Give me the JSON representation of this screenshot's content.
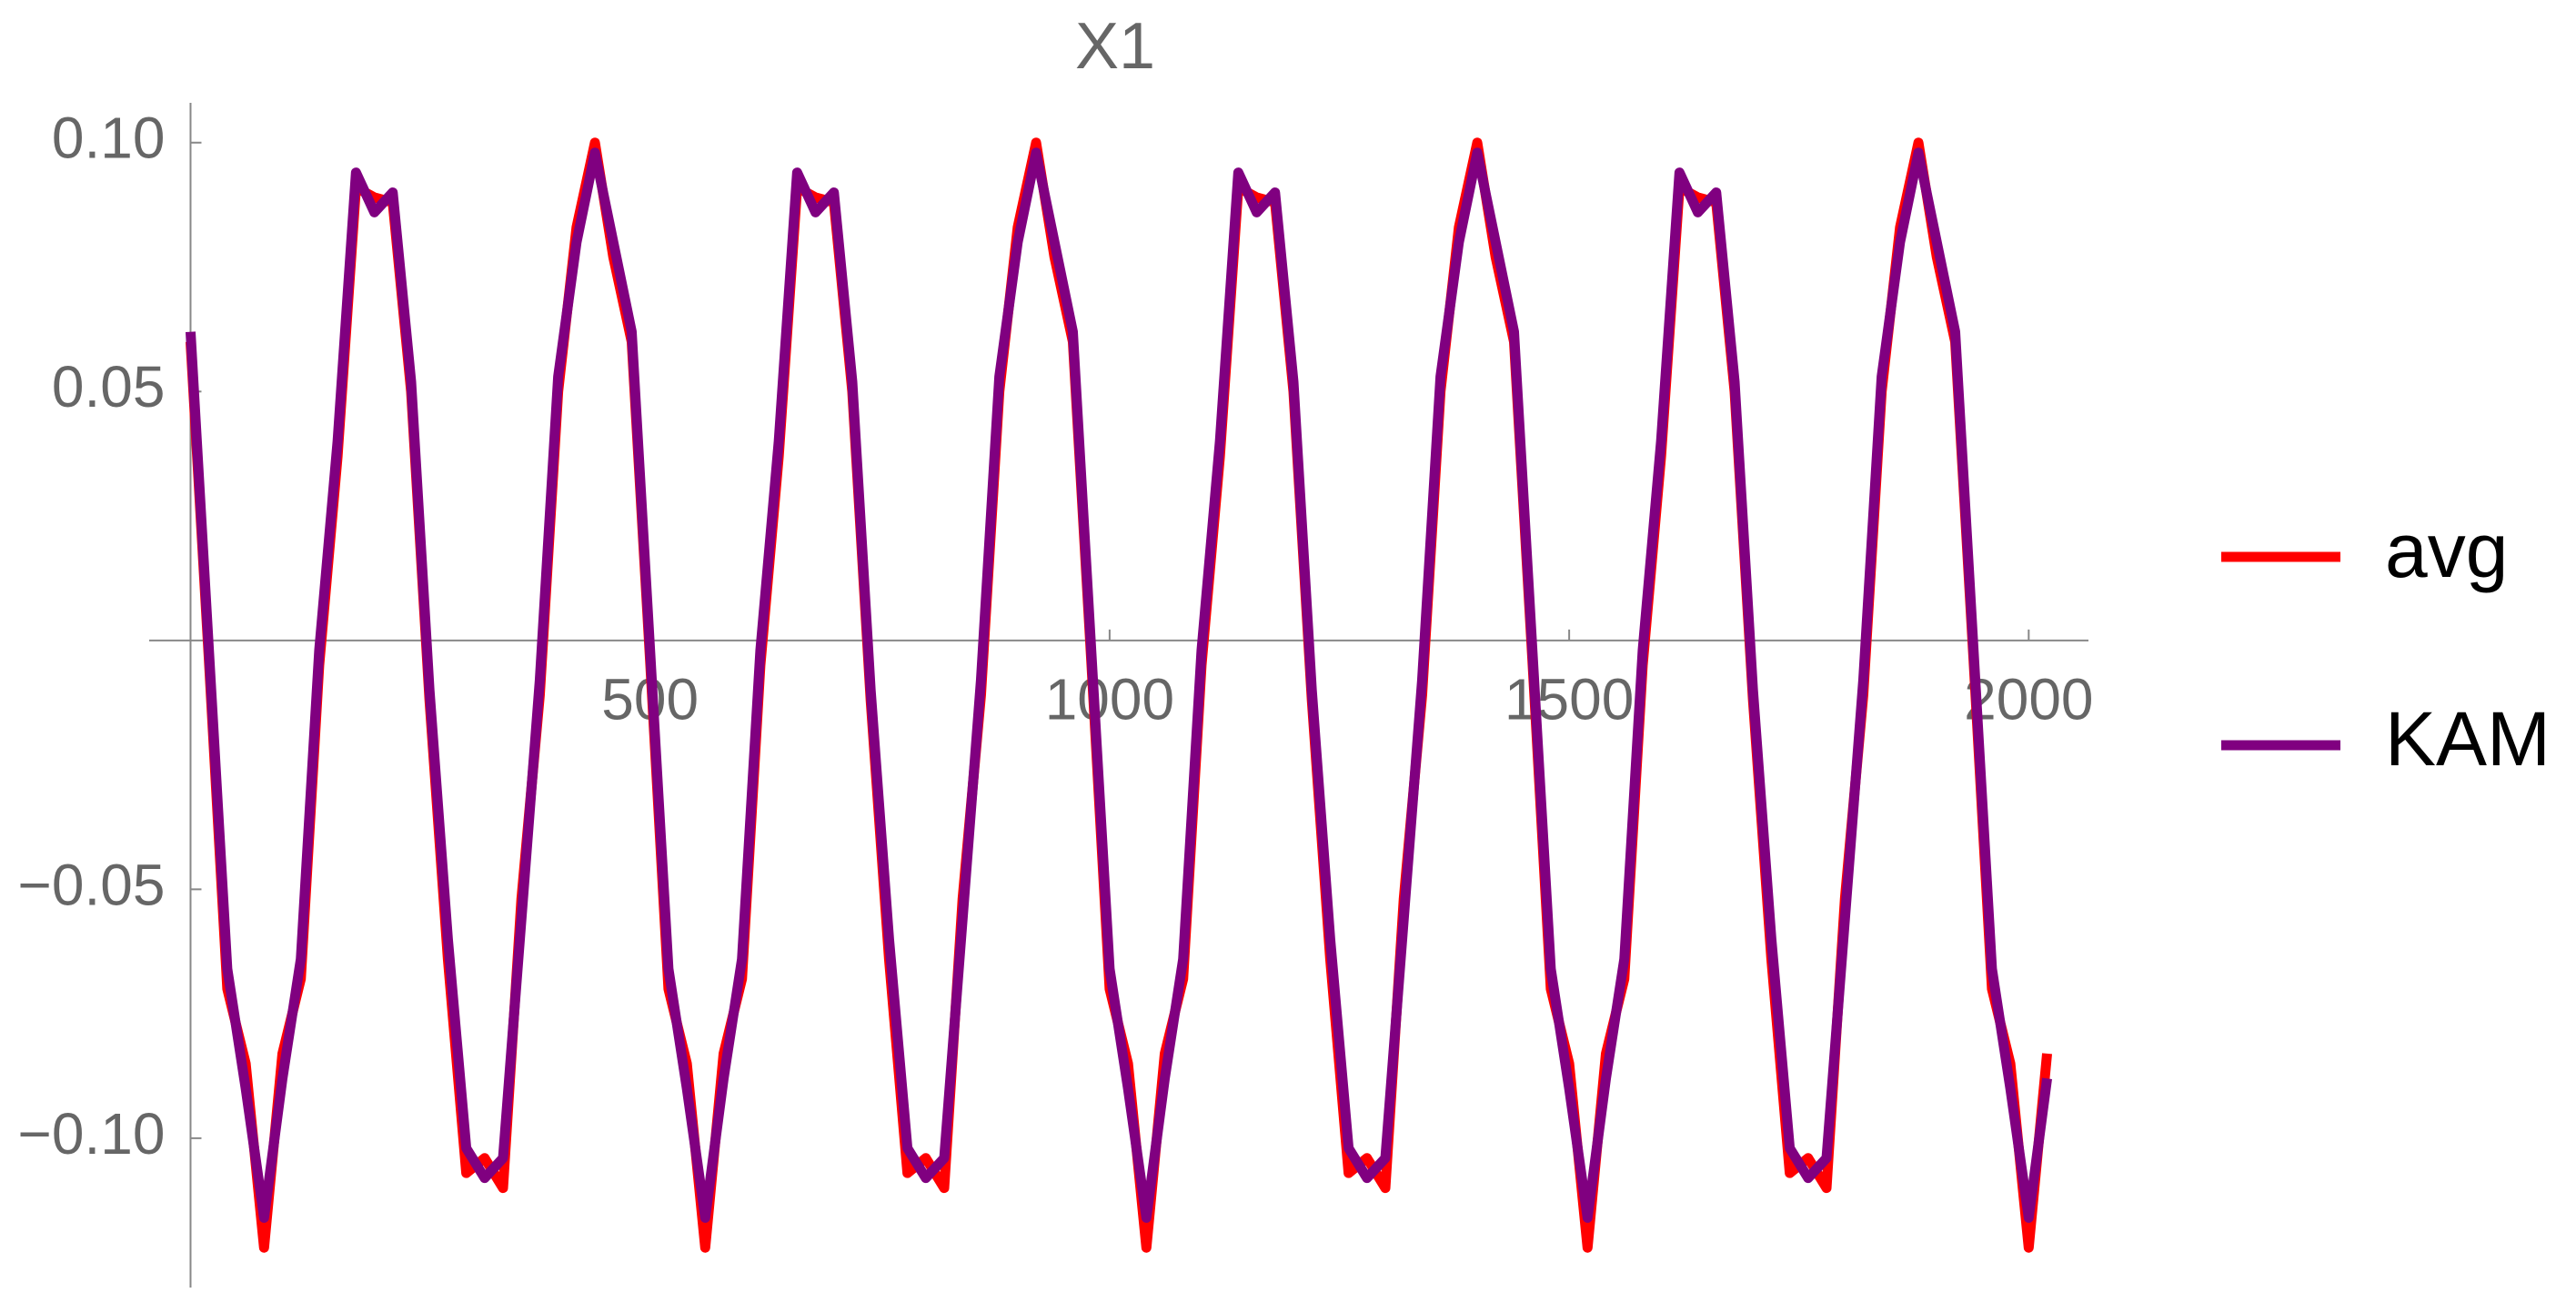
{
  "chart_data": {
    "type": "line",
    "title": "X1",
    "x": [
      0,
      20,
      40,
      60,
      80,
      100,
      120,
      140,
      160,
      180,
      200,
      220,
      240,
      260,
      280,
      300,
      320,
      340,
      360,
      380,
      400,
      420,
      440,
      460,
      480,
      500,
      520,
      540,
      560,
      580,
      600,
      620,
      640,
      660,
      680,
      700,
      720,
      740,
      760,
      780,
      800,
      820,
      840,
      860,
      880,
      900,
      920,
      940,
      960,
      980,
      1000,
      1020,
      1040,
      1060,
      1080,
      1100,
      1120,
      1140,
      1160,
      1180,
      1200,
      1220,
      1240,
      1260,
      1280,
      1300,
      1320,
      1340,
      1360,
      1380,
      1400,
      1420,
      1440,
      1460,
      1480,
      1500,
      1520,
      1540,
      1560,
      1580,
      1600,
      1620,
      1640,
      1660,
      1680,
      1700,
      1720,
      1740,
      1760,
      1780,
      1800,
      1820,
      1840,
      1860,
      1880,
      1900,
      1920,
      1940,
      1960,
      1980,
      2000,
      2020
    ],
    "series": [
      {
        "name": "avg",
        "color": "#ff0000",
        "values": [
          0.06,
          -0.004,
          -0.07,
          -0.085,
          -0.122,
          -0.083,
          -0.068,
          -0.005,
          0.037,
          0.091,
          0.089,
          0.088,
          0.05,
          -0.012,
          -0.064,
          -0.107,
          -0.104,
          -0.11,
          -0.052,
          -0.011,
          0.05,
          0.083,
          0.1,
          0.077,
          0.06,
          -0.004,
          -0.07,
          -0.085,
          -0.122,
          -0.083,
          -0.068,
          -0.005,
          0.037,
          0.091,
          0.089,
          0.088,
          0.05,
          -0.012,
          -0.064,
          -0.107,
          -0.104,
          -0.11,
          -0.052,
          -0.011,
          0.05,
          0.083,
          0.1,
          0.077,
          0.06,
          -0.004,
          -0.07,
          -0.085,
          -0.122,
          -0.083,
          -0.068,
          -0.005,
          0.037,
          0.091,
          0.089,
          0.088,
          0.05,
          -0.012,
          -0.064,
          -0.107,
          -0.104,
          -0.11,
          -0.052,
          -0.011,
          0.05,
          0.083,
          0.1,
          0.077,
          0.06,
          -0.004,
          -0.07,
          -0.085,
          -0.122,
          -0.083,
          -0.068,
          -0.005,
          0.037,
          0.091,
          0.089,
          0.088,
          0.05,
          -0.012,
          -0.064,
          -0.107,
          -0.104,
          -0.11,
          -0.052,
          -0.011,
          0.05,
          0.083,
          0.1,
          0.077,
          0.06,
          -0.004,
          -0.07,
          -0.085,
          -0.122,
          -0.083
        ]
      },
      {
        "name": "KAM",
        "color": "#800080",
        "values": [
          0.062,
          -0.002,
          -0.066,
          -0.09,
          -0.116,
          -0.088,
          -0.064,
          -0.002,
          0.04,
          0.094,
          0.086,
          0.09,
          0.052,
          -0.01,
          -0.06,
          -0.102,
          -0.108,
          -0.104,
          -0.056,
          -0.008,
          0.053,
          0.08,
          0.098,
          0.08,
          0.062,
          -0.002,
          -0.066,
          -0.09,
          -0.116,
          -0.088,
          -0.064,
          -0.002,
          0.04,
          0.094,
          0.086,
          0.09,
          0.052,
          -0.01,
          -0.06,
          -0.102,
          -0.108,
          -0.104,
          -0.056,
          -0.008,
          0.053,
          0.08,
          0.098,
          0.08,
          0.062,
          -0.002,
          -0.066,
          -0.09,
          -0.116,
          -0.088,
          -0.064,
          -0.002,
          0.04,
          0.094,
          0.086,
          0.09,
          0.052,
          -0.01,
          -0.06,
          -0.102,
          -0.108,
          -0.104,
          -0.056,
          -0.008,
          0.053,
          0.08,
          0.098,
          0.08,
          0.062,
          -0.002,
          -0.066,
          -0.09,
          -0.116,
          -0.088,
          -0.064,
          -0.002,
          0.04,
          0.094,
          0.086,
          0.09,
          0.052,
          -0.01,
          -0.06,
          -0.102,
          -0.108,
          -0.104,
          -0.056,
          -0.008,
          0.053,
          0.08,
          0.098,
          0.08,
          0.062,
          -0.002,
          -0.066,
          -0.09,
          -0.116,
          -0.088
        ]
      }
    ],
    "xlim": [
      -45,
      2065
    ],
    "ylim": [
      -0.13,
      0.108
    ],
    "xticks": [
      500,
      1000,
      1500,
      2000
    ],
    "yticks": [
      {
        "value": -0.1,
        "label": "−0.10"
      },
      {
        "value": -0.05,
        "label": "−0.05"
      },
      {
        "value": 0.05,
        "label": "0.05"
      },
      {
        "value": 0.1,
        "label": "0.10"
      }
    ],
    "legend": "right"
  }
}
